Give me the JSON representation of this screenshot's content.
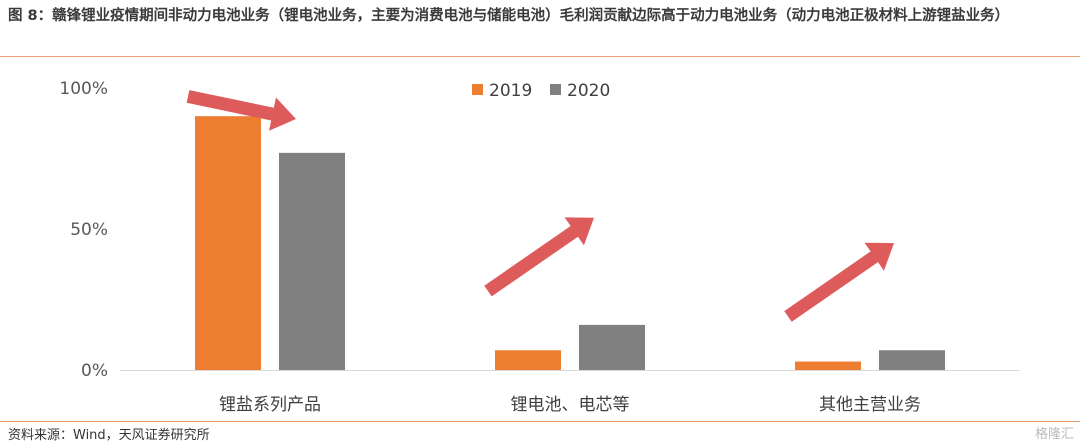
{
  "title": "图 8：赣锋锂业疫情期间非动力电池业务（锂电池业务，主要为消费电池与储能电池）毛利润贡献边际高于动力电池业务（动力电池正极材料上游锂盐业务）",
  "source": "资料来源：Wind，天风证券研究所",
  "watermark": "格隆汇",
  "chart_data": {
    "type": "bar",
    "categories": [
      "锂盐系列产品",
      "锂电池、电芯等",
      "其他主营业务"
    ],
    "series": [
      {
        "name": "2019",
        "color": "#ED7D31",
        "values": [
          90,
          7,
          3
        ]
      },
      {
        "name": "2020",
        "color": "#808080",
        "values": [
          77,
          16,
          7
        ]
      }
    ],
    "y_ticks": [
      "0%",
      "50%",
      "100%"
    ],
    "ylim": [
      0,
      100
    ],
    "legend_position": "top-center",
    "grid": false,
    "annotations": {
      "arrow_color": "#DE5B5B",
      "arrows": [
        {
          "category": "锂盐系列产品",
          "direction": "down"
        },
        {
          "category": "锂电池、电芯等",
          "direction": "up"
        },
        {
          "category": "其他主营业务",
          "direction": "up"
        }
      ]
    }
  }
}
